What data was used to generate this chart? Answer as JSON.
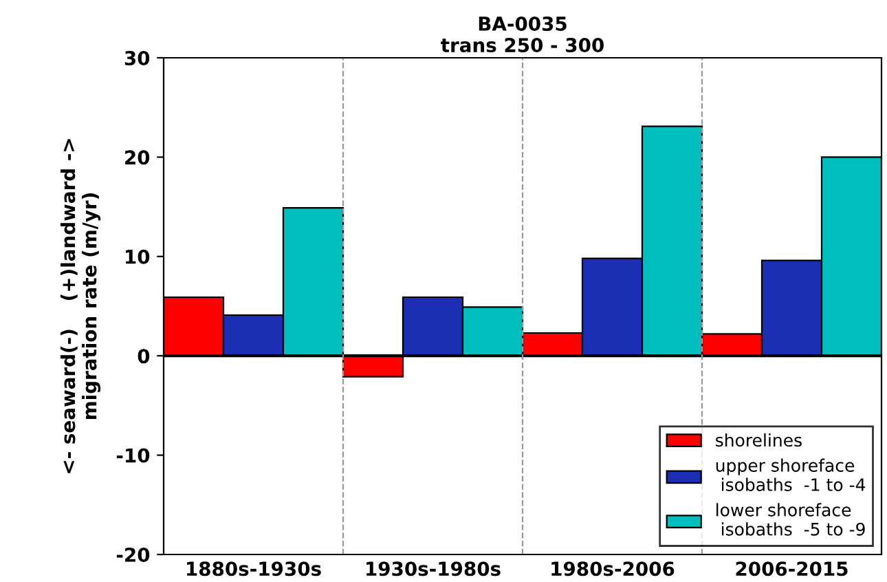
{
  "chart_data": {
    "type": "bar",
    "title": "BA-0035\ntrans 250 - 300",
    "ylabel": "<- seaward(-)    (+)landward ->\nmigration rate (m/yr)",
    "categories": [
      "1880s-1930s",
      "1930s-1980s",
      "1980s-2006",
      "2006-2015"
    ],
    "series": [
      {
        "name": "shorelines",
        "color": "#ff0000",
        "values": [
          5.9,
          -2.1,
          2.3,
          2.2
        ]
      },
      {
        "name": "upper shoreface\n isobaths  -1 to -4",
        "color": "#1c2fb4",
        "values": [
          4.1,
          5.9,
          9.8,
          9.6
        ]
      },
      {
        "name": "lower shoreface\n isobaths  -5 to -9",
        "color": "#00bfbf",
        "values": [
          14.9,
          4.9,
          23.1,
          20.0
        ]
      }
    ],
    "ylim": [
      -20,
      30
    ],
    "yticks": [
      -20,
      -10,
      0,
      10,
      20,
      30
    ],
    "ref_lines": [
      {
        "axis": "y",
        "value": 0,
        "color": "#000000",
        "line_style": "solid"
      }
    ],
    "grid": false,
    "legend": "bottom right"
  }
}
